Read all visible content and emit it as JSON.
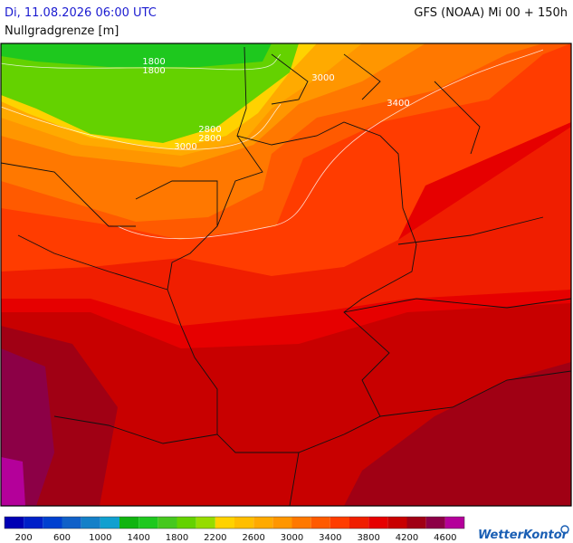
{
  "header": {
    "date": "Di, 11.08.2026 06:00 UTC",
    "model": "GFS (NOAA) Mi 00 + 150h",
    "parameter": "Nullgradgrenze [m]"
  },
  "map": {
    "contour_labels": [
      "1800",
      "1800",
      "3000",
      "3400",
      "2800",
      "2800",
      "3000"
    ]
  },
  "scale": {
    "colors": [
      "#0000b4",
      "#0020c8",
      "#0040d0",
      "#1060c8",
      "#1480c8",
      "#10a0d0",
      "#10b410",
      "#1ec81e",
      "#46c81e",
      "#64d200",
      "#96dc00",
      "#ffd200",
      "#ffbe00",
      "#ffaa00",
      "#ff9600",
      "#ff7800",
      "#ff5a00",
      "#ff3c00",
      "#f01e00",
      "#e60000",
      "#c80000",
      "#a00014",
      "#8c0046",
      "#b4009a"
    ],
    "labels": [
      200,
      600,
      1000,
      1400,
      1800,
      2200,
      2600,
      3000,
      3400,
      3800,
      4200,
      4600
    ]
  },
  "logo": "WetterKontor"
}
